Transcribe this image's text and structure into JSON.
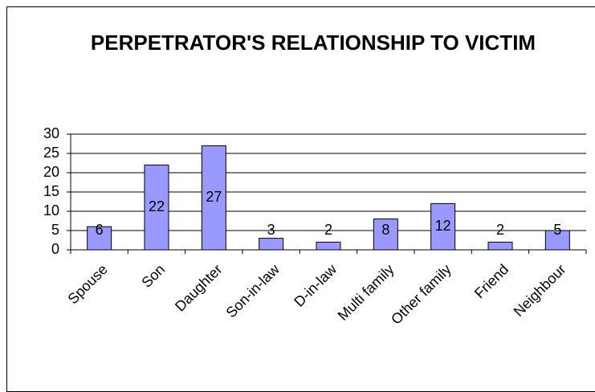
{
  "chart_data": {
    "type": "bar",
    "title": "PERPETRATOR'S RELATIONSHIP TO VICTIM",
    "categories": [
      "Spouse",
      "Son",
      "Daughter",
      "Son-in-law",
      "D-in-law",
      "Multi family",
      "Other family",
      "Friend",
      "Neighbour"
    ],
    "values": [
      6,
      22,
      27,
      3,
      2,
      8,
      12,
      2,
      5
    ],
    "color": "#9999ff",
    "ylim": [
      0,
      30
    ],
    "yticks": [
      0,
      5,
      10,
      15,
      20,
      25,
      30
    ],
    "grid": true
  }
}
